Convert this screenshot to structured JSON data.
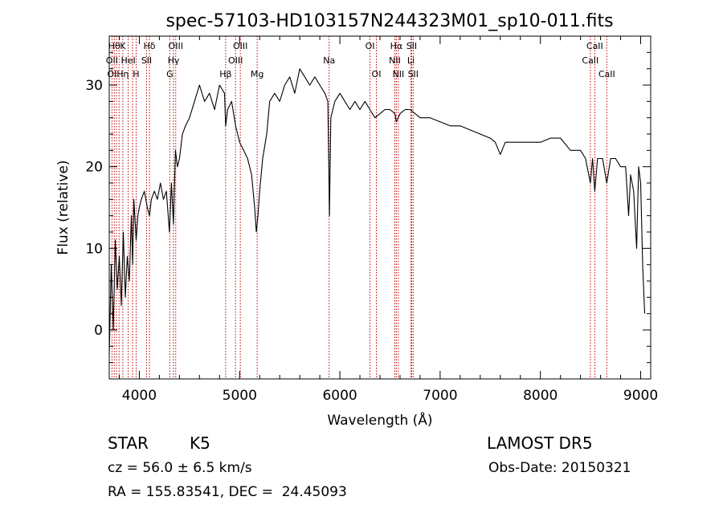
{
  "chart_data": {
    "type": "line",
    "title": "spec-57103-HD103157N244323M01_sp10-011.fits",
    "xlabel": "Wavelength (Å)",
    "ylabel": "Flux (relative)",
    "xlim": [
      3700,
      9100
    ],
    "ylim": [
      -6,
      36
    ],
    "xticks": [
      4000,
      5000,
      6000,
      7000,
      8000,
      9000
    ],
    "yticks": [
      0,
      10,
      20,
      30
    ],
    "series": [
      {
        "x": [
          3700,
          3720,
          3740,
          3760,
          3780,
          3800,
          3820,
          3840,
          3860,
          3880,
          3900,
          3920,
          3933,
          3945,
          3968,
          3985,
          4000,
          4020,
          4050,
          4080,
          4101,
          4120,
          4150,
          4180,
          4210,
          4240,
          4270,
          4300,
          4320,
          4340,
          4360,
          4380,
          4400,
          4430,
          4460,
          4500,
          4550,
          4600,
          4650,
          4700,
          4750,
          4800,
          4850,
          4861,
          4880,
          4920,
          4960,
          5000,
          5040,
          5080,
          5120,
          5150,
          5167,
          5183,
          5200,
          5230,
          5270,
          5300,
          5350,
          5400,
          5450,
          5500,
          5550,
          5600,
          5650,
          5700,
          5750,
          5800,
          5850,
          5880,
          5890,
          5896,
          5910,
          5950,
          6000,
          6050,
          6100,
          6150,
          6200,
          6250,
          6300,
          6350,
          6400,
          6450,
          6500,
          6550,
          6563,
          6600,
          6650,
          6700,
          6750,
          6800,
          6900,
          7000,
          7100,
          7200,
          7300,
          7400,
          7500,
          7550,
          7600,
          7650,
          7700,
          7800,
          7900,
          8000,
          8100,
          8200,
          8300,
          8400,
          8450,
          8498,
          8520,
          8542,
          8570,
          8620,
          8662,
          8700,
          8750,
          8800,
          8850,
          8880,
          8900,
          8930,
          8960,
          8980,
          9000,
          9020,
          9040
        ],
        "y": [
          -3,
          8,
          0,
          11,
          5,
          9,
          3,
          12,
          4,
          9,
          6,
          14,
          8,
          16,
          11,
          14,
          15,
          16,
          17,
          15,
          14,
          16,
          17,
          16,
          18,
          16,
          17,
          12,
          18,
          13,
          22,
          20,
          21,
          24,
          25,
          26,
          28,
          30,
          28,
          29,
          27,
          30,
          29,
          25,
          27,
          28,
          25,
          23,
          22,
          21,
          19,
          15,
          12,
          14,
          17,
          21,
          24,
          28,
          29,
          28,
          30,
          31,
          29,
          32,
          31,
          30,
          31,
          30,
          29,
          28,
          20,
          14,
          26,
          28,
          29,
          28,
          27,
          28,
          27,
          28,
          27,
          26,
          26.5,
          27,
          27,
          26.5,
          25.5,
          26.5,
          27,
          27,
          26.5,
          26,
          26,
          25.5,
          25,
          25,
          24.5,
          24,
          23.5,
          23,
          21.5,
          23,
          23,
          23,
          23,
          23,
          23.5,
          23.5,
          22,
          22,
          21,
          18,
          21,
          17,
          21,
          21,
          18,
          21,
          21,
          20,
          20,
          14,
          19,
          17,
          10,
          20,
          18,
          8,
          2
        ]
      }
    ]
  },
  "line_labels": [
    {
      "wl": 3750,
      "row": 0,
      "text": "Hθ"
    },
    {
      "wl": 3835,
      "row": 0,
      "text": "K"
    },
    {
      "wl": 4101,
      "row": 0,
      "text": "Hδ"
    },
    {
      "wl": 4363,
      "row": 0,
      "text": "OIII"
    },
    {
      "wl": 5007,
      "row": 0,
      "text": "OIII"
    },
    {
      "wl": 6300,
      "row": 0,
      "text": "OI"
    },
    {
      "wl": 6563,
      "row": 0,
      "text": "Hα"
    },
    {
      "wl": 6716,
      "row": 0,
      "text": "SII"
    },
    {
      "wl": 8542,
      "row": 0,
      "text": "CaII"
    },
    {
      "wl": 3727,
      "row": 1,
      "text": "OII"
    },
    {
      "wl": 3889,
      "row": 1,
      "text": "HeI"
    },
    {
      "wl": 4072,
      "row": 1,
      "text": "SII"
    },
    {
      "wl": 4341,
      "row": 1,
      "text": "Hγ"
    },
    {
      "wl": 4959,
      "row": 1,
      "text": "OIII"
    },
    {
      "wl": 5893,
      "row": 1,
      "text": "Na"
    },
    {
      "wl": 6548,
      "row": 1,
      "text": "NII"
    },
    {
      "wl": 6708,
      "row": 1,
      "text": "Li"
    },
    {
      "wl": 8498,
      "row": 1,
      "text": "CaII"
    },
    {
      "wl": 3727,
      "row": 2,
      "text": "OI"
    },
    {
      "wl": 3835,
      "row": 2,
      "text": "Hη"
    },
    {
      "wl": 3968,
      "row": 2,
      "text": "H"
    },
    {
      "wl": 4304,
      "row": 2,
      "text": "G"
    },
    {
      "wl": 4861,
      "row": 2,
      "text": "Hβ"
    },
    {
      "wl": 5175,
      "row": 2,
      "text": "Mg"
    },
    {
      "wl": 6364,
      "row": 2,
      "text": "OI"
    },
    {
      "wl": 6583,
      "row": 2,
      "text": "NII"
    },
    {
      "wl": 6731,
      "row": 2,
      "text": "SII"
    },
    {
      "wl": 8662,
      "row": 2,
      "text": "CaII"
    }
  ],
  "marker_lines": [
    3727,
    3750,
    3771,
    3798,
    3835,
    3889,
    3933,
    3968,
    4072,
    4101,
    4304,
    4341,
    4363,
    4861,
    4959,
    5007,
    5175,
    5893,
    6300,
    6364,
    6548,
    6563,
    6583,
    6708,
    6716,
    6731,
    8498,
    8542,
    8662
  ],
  "info": {
    "class_label": "STAR",
    "subclass": "K5",
    "survey": "LAMOST DR5",
    "cz": "cz = 56.0 ± 6.5 km/s",
    "obs_date": "Obs-Date: 20150321",
    "coords": "RA = 155.83541, DEC =  24.45093"
  },
  "colors": {
    "spectrum": "#000000",
    "marker": "#c00000",
    "axis": "#000000"
  }
}
